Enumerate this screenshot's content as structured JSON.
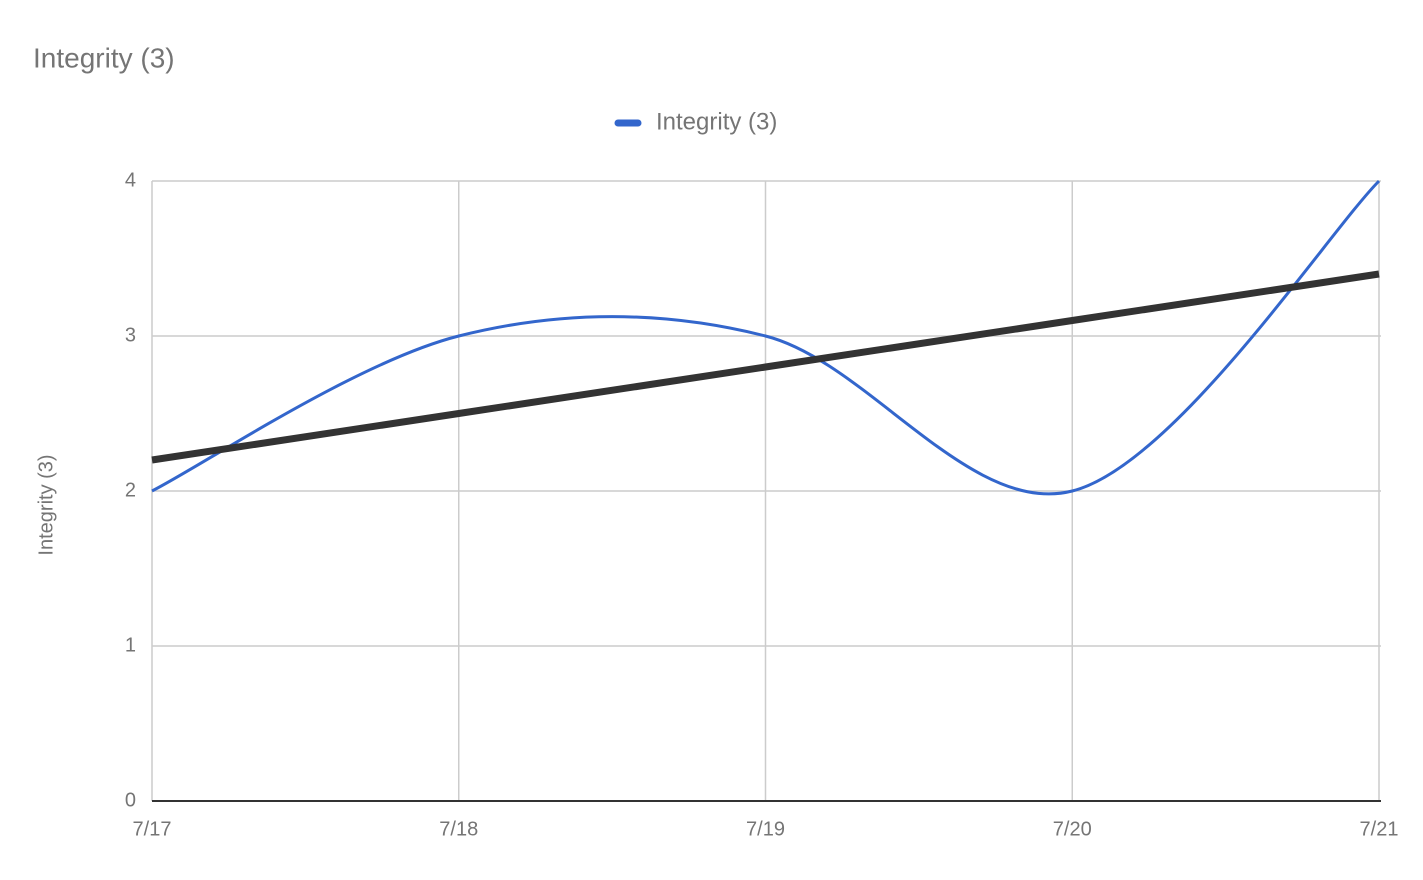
{
  "chart_data": {
    "type": "line",
    "title": "Integrity (3)",
    "y_label": "Integrity (3)",
    "categories": [
      "7/17",
      "7/18",
      "7/19",
      "7/20",
      "7/21"
    ],
    "series": [
      {
        "name": "Integrity (3)",
        "color": "#3366cc",
        "values": [
          2,
          3,
          3,
          2,
          4
        ]
      }
    ],
    "trendline": {
      "color": "#333333",
      "values": [
        2.2,
        2.5,
        2.8,
        3.1,
        3.4
      ]
    },
    "ylim": [
      0,
      4
    ],
    "yticks": [
      0,
      1,
      2,
      3,
      4
    ],
    "grid": true,
    "smooth": true,
    "legend": "top"
  }
}
